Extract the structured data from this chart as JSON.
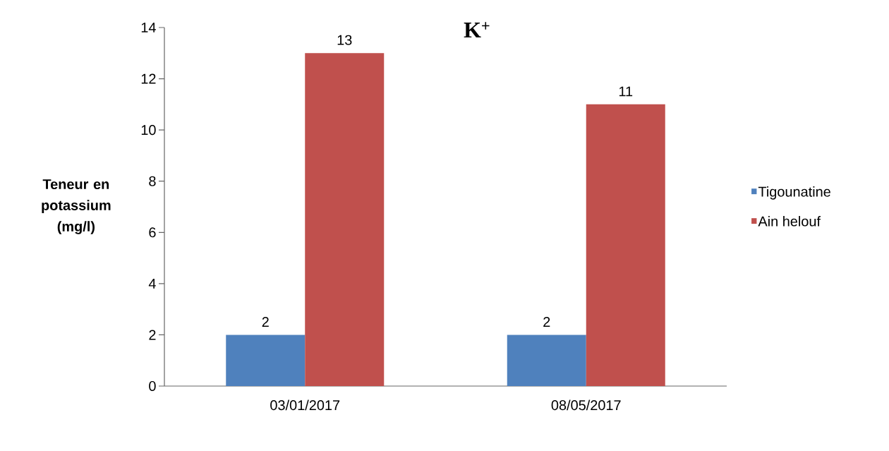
{
  "chart_data": {
    "type": "bar",
    "title": "K$^{+}$",
    "ylabel": "Teneur en potassium (mg/l)",
    "categories": [
      "03/01/2017",
      "08/05/2017"
    ],
    "series": [
      {
        "name": "Tigounatine",
        "color": "#4f81bd",
        "values": [
          2,
          2
        ]
      },
      {
        "name": "Ain helouf",
        "color": "#c0504d",
        "values": [
          13,
          11
        ]
      }
    ],
    "ylim": [
      0,
      14
    ],
    "yticks": [
      0,
      2,
      4,
      6,
      8,
      10,
      12,
      14
    ],
    "grid": false,
    "legend": "right",
    "data_labels": true
  }
}
